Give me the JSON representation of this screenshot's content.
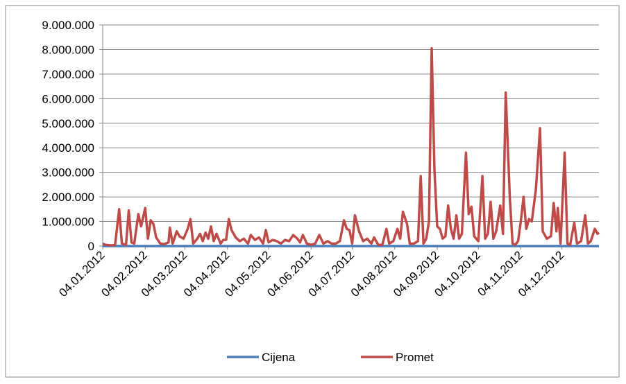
{
  "chart_data": {
    "type": "line",
    "ylim": [
      0,
      9000000
    ],
    "yticks": [
      0,
      {
        "value": 1000000,
        "label": "1.000.000"
      },
      {
        "value": 2000000,
        "label": "2.000.000"
      },
      {
        "value": 3000000,
        "label": "3.000.000"
      },
      {
        "value": 4000000,
        "label": "4.000.000"
      },
      {
        "value": 5000000,
        "label": "5.000.000"
      },
      {
        "value": 6000000,
        "label": "6.000.000"
      },
      {
        "value": 7000000,
        "label": "7.000.000"
      },
      {
        "value": 8000000,
        "label": "8.000.000"
      },
      {
        "value": 9000000,
        "label": "9.000.000"
      }
    ],
    "xlim": [
      "2012-01-04",
      "2012-12-31"
    ],
    "xticks": [
      {
        "value": "2012-01-04",
        "label": "04.01.2012"
      },
      {
        "value": "2012-02-04",
        "label": "04.02.2012"
      },
      {
        "value": "2012-03-04",
        "label": "04.03.2012"
      },
      {
        "value": "2012-04-04",
        "label": "04.04.2012"
      },
      {
        "value": "2012-05-04",
        "label": "04.05.2012"
      },
      {
        "value": "2012-06-04",
        "label": "04.06.2012"
      },
      {
        "value": "2012-07-04",
        "label": "04.07.2012"
      },
      {
        "value": "2012-08-04",
        "label": "04.08.2012"
      },
      {
        "value": "2012-09-04",
        "label": "04.09.2012"
      },
      {
        "value": "2012-10-04",
        "label": "04.10.2012"
      },
      {
        "value": "2012-11-04",
        "label": "04.11.2012"
      },
      {
        "value": "2012-12-04",
        "label": "04.12.2012"
      }
    ],
    "grid": true,
    "legend": "bottom",
    "series": [
      {
        "name": "Cijena",
        "color": "#4a7ebb",
        "x": [
          "2012-01-04",
          "2012-02-04",
          "2012-03-04",
          "2012-04-04",
          "2012-05-04",
          "2012-06-04",
          "2012-07-04",
          "2012-08-04",
          "2012-09-04",
          "2012-10-04",
          "2012-11-04",
          "2012-12-04",
          "2012-12-31"
        ],
        "values": [
          20,
          20,
          20,
          20,
          20,
          20,
          20,
          20,
          20,
          20,
          20,
          20,
          20
        ]
      },
      {
        "name": "Promet",
        "color": "#be4b48",
        "x": [
          "2012-01-04",
          "2012-01-06",
          "2012-01-10",
          "2012-01-13",
          "2012-01-16",
          "2012-01-18",
          "2012-01-21",
          "2012-01-23",
          "2012-01-25",
          "2012-01-27",
          "2012-01-30",
          "2012-02-01",
          "2012-02-04",
          "2012-02-06",
          "2012-02-08",
          "2012-02-10",
          "2012-02-12",
          "2012-02-15",
          "2012-02-18",
          "2012-02-21",
          "2012-02-22",
          "2012-02-24",
          "2012-02-27",
          "2012-02-29",
          "2012-03-03",
          "2012-03-06",
          "2012-03-08",
          "2012-03-10",
          "2012-03-13",
          "2012-03-15",
          "2012-03-17",
          "2012-03-19",
          "2012-03-21",
          "2012-03-23",
          "2012-03-25",
          "2012-03-27",
          "2012-03-30",
          "2012-04-01",
          "2012-04-03",
          "2012-04-05",
          "2012-04-07",
          "2012-04-10",
          "2012-04-13",
          "2012-04-16",
          "2012-04-19",
          "2012-04-21",
          "2012-04-24",
          "2012-04-27",
          "2012-04-30",
          "2012-05-02",
          "2012-05-04",
          "2012-05-07",
          "2012-05-10",
          "2012-05-13",
          "2012-05-16",
          "2012-05-19",
          "2012-05-22",
          "2012-05-25",
          "2012-05-27",
          "2012-05-29",
          "2012-06-01",
          "2012-06-04",
          "2012-06-07",
          "2012-06-10",
          "2012-06-13",
          "2012-06-16",
          "2012-06-19",
          "2012-06-22",
          "2012-06-25",
          "2012-06-28",
          "2012-06-30",
          "2012-07-02",
          "2012-07-04",
          "2012-07-06",
          "2012-07-09",
          "2012-07-12",
          "2012-07-15",
          "2012-07-18",
          "2012-07-20",
          "2012-07-23",
          "2012-07-26",
          "2012-07-29",
          "2012-07-31",
          "2012-08-03",
          "2012-08-06",
          "2012-08-08",
          "2012-08-10",
          "2012-08-13",
          "2012-08-15",
          "2012-08-18",
          "2012-08-21",
          "2012-08-23",
          "2012-08-25",
          "2012-08-27",
          "2012-08-29",
          "2012-08-31",
          "2012-09-02",
          "2012-09-04",
          "2012-09-06",
          "2012-09-08",
          "2012-09-10",
          "2012-09-12",
          "2012-09-14",
          "2012-09-16",
          "2012-09-18",
          "2012-09-20",
          "2012-09-22",
          "2012-09-25",
          "2012-09-27",
          "2012-09-29",
          "2012-10-01",
          "2012-10-04",
          "2012-10-07",
          "2012-10-09",
          "2012-10-11",
          "2012-10-13",
          "2012-10-15",
          "2012-10-17",
          "2012-10-20",
          "2012-10-22",
          "2012-10-24",
          "2012-10-27",
          "2012-10-29",
          "2012-10-31",
          "2012-11-02",
          "2012-11-04",
          "2012-11-06",
          "2012-11-08",
          "2012-11-10",
          "2012-11-12",
          "2012-11-15",
          "2012-11-18",
          "2012-11-20",
          "2012-11-23",
          "2012-11-26",
          "2012-11-28",
          "2012-11-30",
          "2012-12-01",
          "2012-12-03",
          "2012-12-06",
          "2012-12-08",
          "2012-12-10",
          "2012-12-13",
          "2012-12-15",
          "2012-12-18",
          "2012-12-21",
          "2012-12-23",
          "2012-12-25",
          "2012-12-28",
          "2012-12-30",
          "2012-12-31"
        ],
        "values": [
          100000,
          50000,
          30000,
          40000,
          1500000,
          100000,
          50000,
          1450000,
          150000,
          100000,
          1300000,
          800000,
          1550000,
          300000,
          1050000,
          900000,
          350000,
          100000,
          80000,
          150000,
          750000,
          100000,
          600000,
          400000,
          300000,
          700000,
          1100000,
          100000,
          300000,
          500000,
          200000,
          550000,
          300000,
          800000,
          200000,
          500000,
          100000,
          250000,
          250000,
          1100000,
          650000,
          350000,
          200000,
          300000,
          100000,
          450000,
          250000,
          350000,
          100000,
          650000,
          150000,
          250000,
          200000,
          100000,
          250000,
          200000,
          450000,
          300000,
          150000,
          450000,
          100000,
          50000,
          100000,
          450000,
          100000,
          200000,
          100000,
          100000,
          200000,
          1050000,
          700000,
          650000,
          100000,
          1250000,
          600000,
          200000,
          300000,
          100000,
          350000,
          50000,
          50000,
          700000,
          100000,
          200000,
          700000,
          300000,
          1400000,
          900000,
          100000,
          100000,
          200000,
          2850000,
          100000,
          300000,
          1000000,
          8050000,
          3100000,
          800000,
          700000,
          300000,
          400000,
          1650000,
          700000,
          300000,
          1250000,
          300000,
          500000,
          3800000,
          1300000,
          1600000,
          400000,
          200000,
          2850000,
          300000,
          500000,
          1800000,
          300000,
          600000,
          1650000,
          500000,
          6250000,
          1950000,
          100000,
          50000,
          200000,
          1000000,
          2000000,
          700000,
          1100000,
          1000000,
          2300000,
          4800000,
          600000,
          300000,
          400000,
          1750000,
          600000,
          1550000,
          100000,
          3800000,
          100000,
          50000,
          950000,
          100000,
          200000,
          1250000,
          100000,
          200000,
          700000,
          500000,
          550000
        ]
      }
    ]
  }
}
